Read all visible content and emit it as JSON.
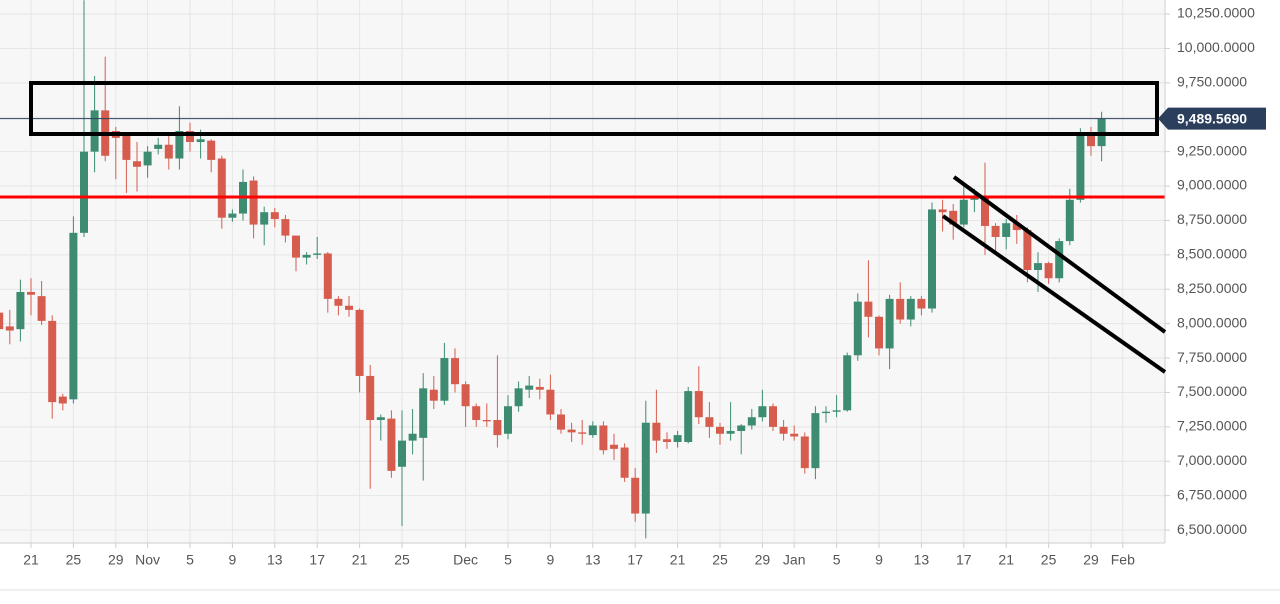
{
  "chart_data": {
    "type": "candlestick",
    "categories": [
      null,
      null,
      null,
      "21",
      null,
      null,
      null,
      "25",
      null,
      null,
      null,
      "29",
      null,
      null,
      "Nov",
      null,
      null,
      null,
      "5",
      null,
      null,
      null,
      "9",
      null,
      null,
      null,
      "13",
      null,
      null,
      null,
      "17",
      null,
      null,
      null,
      "21",
      null,
      null,
      null,
      "25",
      null,
      null,
      null,
      null,
      null,
      "Dec",
      null,
      null,
      null,
      "5",
      null,
      null,
      null,
      "9",
      null,
      null,
      null,
      "13",
      null,
      null,
      null,
      "17",
      null,
      null,
      null,
      "21",
      null,
      null,
      null,
      "25",
      null,
      null,
      null,
      "29",
      null,
      null,
      "Jan",
      null,
      null,
      null,
      "5",
      null,
      null,
      null,
      "9",
      null,
      null,
      null,
      "13",
      null,
      null,
      null,
      "17",
      null,
      null,
      null,
      "21",
      null,
      null,
      null,
      "25",
      null,
      null,
      null,
      "29",
      null,
      null,
      "Feb"
    ],
    "series": [
      {
        "up_color": "#3d8c72",
        "down_color": "#d65c4e",
        "open": [
          8080,
          7980,
          7960,
          8230,
          8200,
          8020,
          7470,
          7450,
          8660,
          9250,
          9550,
          9400,
          9380,
          9180,
          9150,
          9270,
          9300,
          9200,
          9400,
          9320,
          9330,
          9200,
          8770,
          8800,
          9040,
          8720,
          8810,
          8760,
          8640,
          8480,
          8500,
          8510,
          8180,
          8130,
          8100,
          7620,
          7300,
          7310,
          6960,
          7150,
          7170,
          7520,
          7440,
          7750,
          7560,
          7400,
          7300,
          7300,
          7200,
          7400,
          7520,
          7540,
          7520,
          7340,
          7230,
          7210,
          7190,
          7260,
          7120,
          7100,
          6880,
          6620,
          7280,
          7160,
          7140,
          7140,
          7510,
          7320,
          7250,
          7200,
          7220,
          7260,
          7320,
          7400,
          7250,
          7200,
          7180,
          6950,
          7350,
          7360,
          7370,
          7770,
          8160,
          8050,
          7820,
          8180,
          8030,
          8180,
          8110,
          8830,
          8820,
          8720,
          8900,
          8910,
          8710,
          8630,
          8730,
          8680,
          8390,
          8440,
          8330,
          8600,
          8900,
          9390,
          9290,
          null,
          null
        ],
        "high": [
          8120,
          8100,
          8320,
          8330,
          8310,
          8060,
          7490,
          8780,
          10350,
          9800,
          9940,
          9430,
          9380,
          9320,
          9290,
          9350,
          9380,
          9580,
          9460,
          9410,
          9340,
          9220,
          8830,
          9120,
          9070,
          8850,
          8840,
          8790,
          8640,
          8520,
          8630,
          8520,
          8200,
          8200,
          8110,
          7700,
          7340,
          7370,
          7370,
          7380,
          7640,
          7620,
          7860,
          7820,
          7580,
          7420,
          7420,
          7770,
          7480,
          7580,
          7620,
          7600,
          7630,
          7380,
          7280,
          7300,
          7290,
          7290,
          7200,
          7130,
          6950,
          7440,
          7520,
          7210,
          7220,
          7540,
          7690,
          7430,
          7280,
          7430,
          7270,
          7380,
          7520,
          7420,
          7300,
          7260,
          7210,
          7400,
          7400,
          7480,
          7790,
          8220,
          8460,
          8060,
          8210,
          8300,
          8200,
          8200,
          8880,
          8900,
          8870,
          9000,
          8980,
          9170,
          8730,
          8760,
          8790,
          8700,
          8520,
          8450,
          8620,
          8980,
          9420,
          9430,
          9540,
          null,
          null
        ],
        "low": [
          7840,
          7850,
          7870,
          8060,
          7990,
          7310,
          7370,
          7420,
          8630,
          9100,
          9180,
          9050,
          8950,
          8960,
          9060,
          9230,
          9120,
          9120,
          9250,
          9200,
          9100,
          8690,
          8740,
          8750,
          8620,
          8570,
          8700,
          8590,
          8380,
          8430,
          8470,
          8080,
          8060,
          8050,
          7500,
          6800,
          7150,
          6880,
          6530,
          7050,
          6860,
          7380,
          7410,
          7500,
          7250,
          7250,
          7250,
          7100,
          7160,
          7360,
          7460,
          7450,
          7300,
          7200,
          7140,
          7120,
          7170,
          7050,
          7010,
          6850,
          6560,
          6440,
          7060,
          7090,
          7100,
          7130,
          7270,
          7170,
          7120,
          7150,
          7050,
          7230,
          7290,
          7220,
          7150,
          7150,
          6910,
          6870,
          7280,
          7320,
          7360,
          7730,
          7900,
          7770,
          7670,
          8000,
          7980,
          8060,
          8080,
          8670,
          8610,
          8700,
          8810,
          8500,
          8520,
          8540,
          8580,
          8300,
          8230,
          8290,
          8300,
          8570,
          8880,
          9220,
          9180,
          null,
          null
        ],
        "close": [
          7960,
          7950,
          8230,
          8210,
          8020,
          7430,
          7420,
          8660,
          9250,
          9550,
          9220,
          9350,
          9190,
          9140,
          9250,
          9300,
          9200,
          9400,
          9320,
          9340,
          9190,
          8770,
          8800,
          9030,
          8720,
          8810,
          8760,
          8640,
          8480,
          8500,
          8510,
          8180,
          8130,
          8100,
          7620,
          7300,
          7320,
          6930,
          7150,
          7200,
          7530,
          7440,
          7750,
          7560,
          7400,
          7300,
          7290,
          7190,
          7400,
          7530,
          7550,
          7520,
          7340,
          7230,
          7210,
          7200,
          7260,
          7080,
          7090,
          6880,
          6620,
          7280,
          7150,
          7140,
          7190,
          7510,
          7320,
          7250,
          7200,
          7220,
          7260,
          7320,
          7400,
          7250,
          7200,
          7180,
          6950,
          7350,
          7360,
          7370,
          7770,
          8160,
          8050,
          7820,
          8180,
          8030,
          8180,
          8110,
          8830,
          8810,
          8720,
          8900,
          8910,
          8710,
          8630,
          8730,
          8680,
          8390,
          8440,
          8330,
          8600,
          8900,
          9390,
          9290,
          9489.569,
          null,
          null
        ]
      }
    ],
    "ylim": [
      6406,
      10352
    ],
    "yticks": [
      {
        "value": 6500,
        "label": "6,500.0000"
      },
      {
        "value": 6750,
        "label": "6,750.0000"
      },
      {
        "value": 7000,
        "label": "7,000.0000"
      },
      {
        "value": 7250,
        "label": "7,250.0000"
      },
      {
        "value": 7500,
        "label": "7,500.0000"
      },
      {
        "value": 7750,
        "label": "7,750.0000"
      },
      {
        "value": 8000,
        "label": "8,000.0000"
      },
      {
        "value": 8250,
        "label": "8,250.0000"
      },
      {
        "value": 8500,
        "label": "8,500.0000"
      },
      {
        "value": 8750,
        "label": "8,750.0000"
      },
      {
        "value": 9000,
        "label": "9,000.0000"
      },
      {
        "value": 9250,
        "label": "9,250.0000"
      },
      {
        "value": 9500,
        "label": "9,500.0000"
      },
      {
        "value": 9750,
        "label": "9,750.0000"
      },
      {
        "value": 10000,
        "label": "10,000.0000"
      },
      {
        "value": 10250,
        "label": "10,250.0000"
      }
    ],
    "grid": true,
    "last_price": {
      "value": 9489.569,
      "label": "9,489.5690",
      "color": "#2b3f5c"
    },
    "level_line": {
      "value": 8920,
      "color": "#ff0000"
    }
  }
}
